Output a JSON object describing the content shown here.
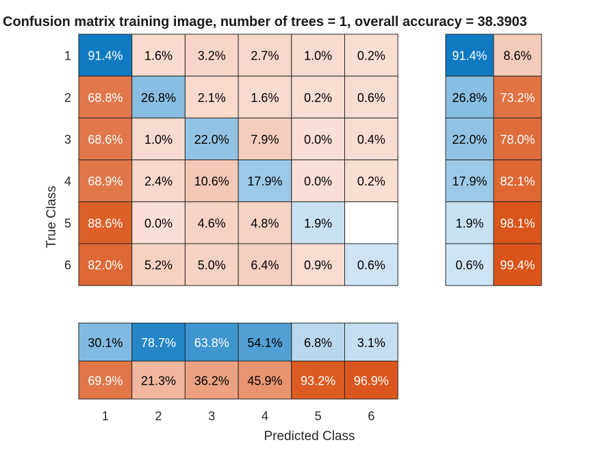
{
  "chart_data": {
    "type": "heatmap",
    "title": "Confusion matrix training image, number of trees = 1, overall accuracy = 38.3903",
    "xlabel": "Predicted Class",
    "ylabel": "True Class",
    "classes": [
      "1",
      "2",
      "3",
      "4",
      "5",
      "6"
    ],
    "matrix": [
      [
        "91.4%",
        "1.6%",
        "3.2%",
        "2.7%",
        "1.0%",
        "0.2%"
      ],
      [
        "68.8%",
        "26.8%",
        "2.1%",
        "1.6%",
        "0.2%",
        "0.6%"
      ],
      [
        "68.6%",
        "1.0%",
        "22.0%",
        "7.9%",
        "0.0%",
        "0.4%"
      ],
      [
        "68.9%",
        "2.4%",
        "10.6%",
        "17.9%",
        "0.0%",
        "0.2%"
      ],
      [
        "88.6%",
        "0.0%",
        "4.6%",
        "4.8%",
        "1.9%",
        ""
      ],
      [
        "82.0%",
        "5.2%",
        "5.0%",
        "6.4%",
        "0.9%",
        "0.6%"
      ]
    ],
    "row_summary": [
      [
        "91.4%",
        "8.6%"
      ],
      [
        "26.8%",
        "73.2%"
      ],
      [
        "22.0%",
        "78.0%"
      ],
      [
        "17.9%",
        "82.1%"
      ],
      [
        "1.9%",
        "98.1%"
      ],
      [
        "0.6%",
        "99.4%"
      ]
    ],
    "column_summary": [
      [
        "30.1%",
        "78.7%",
        "63.8%",
        "54.1%",
        "6.8%",
        "3.1%"
      ],
      [
        "69.9%",
        "21.3%",
        "36.2%",
        "45.9%",
        "93.2%",
        "96.9%"
      ]
    ],
    "colors": {
      "correct_dark": "#0072bd",
      "correct_light": "#d1e6f5",
      "incorrect_dark": "#d95319",
      "incorrect_light": "#f9dfd5",
      "text_dark": "#000000",
      "text_light": "#ffffff",
      "border": "#262626"
    }
  }
}
